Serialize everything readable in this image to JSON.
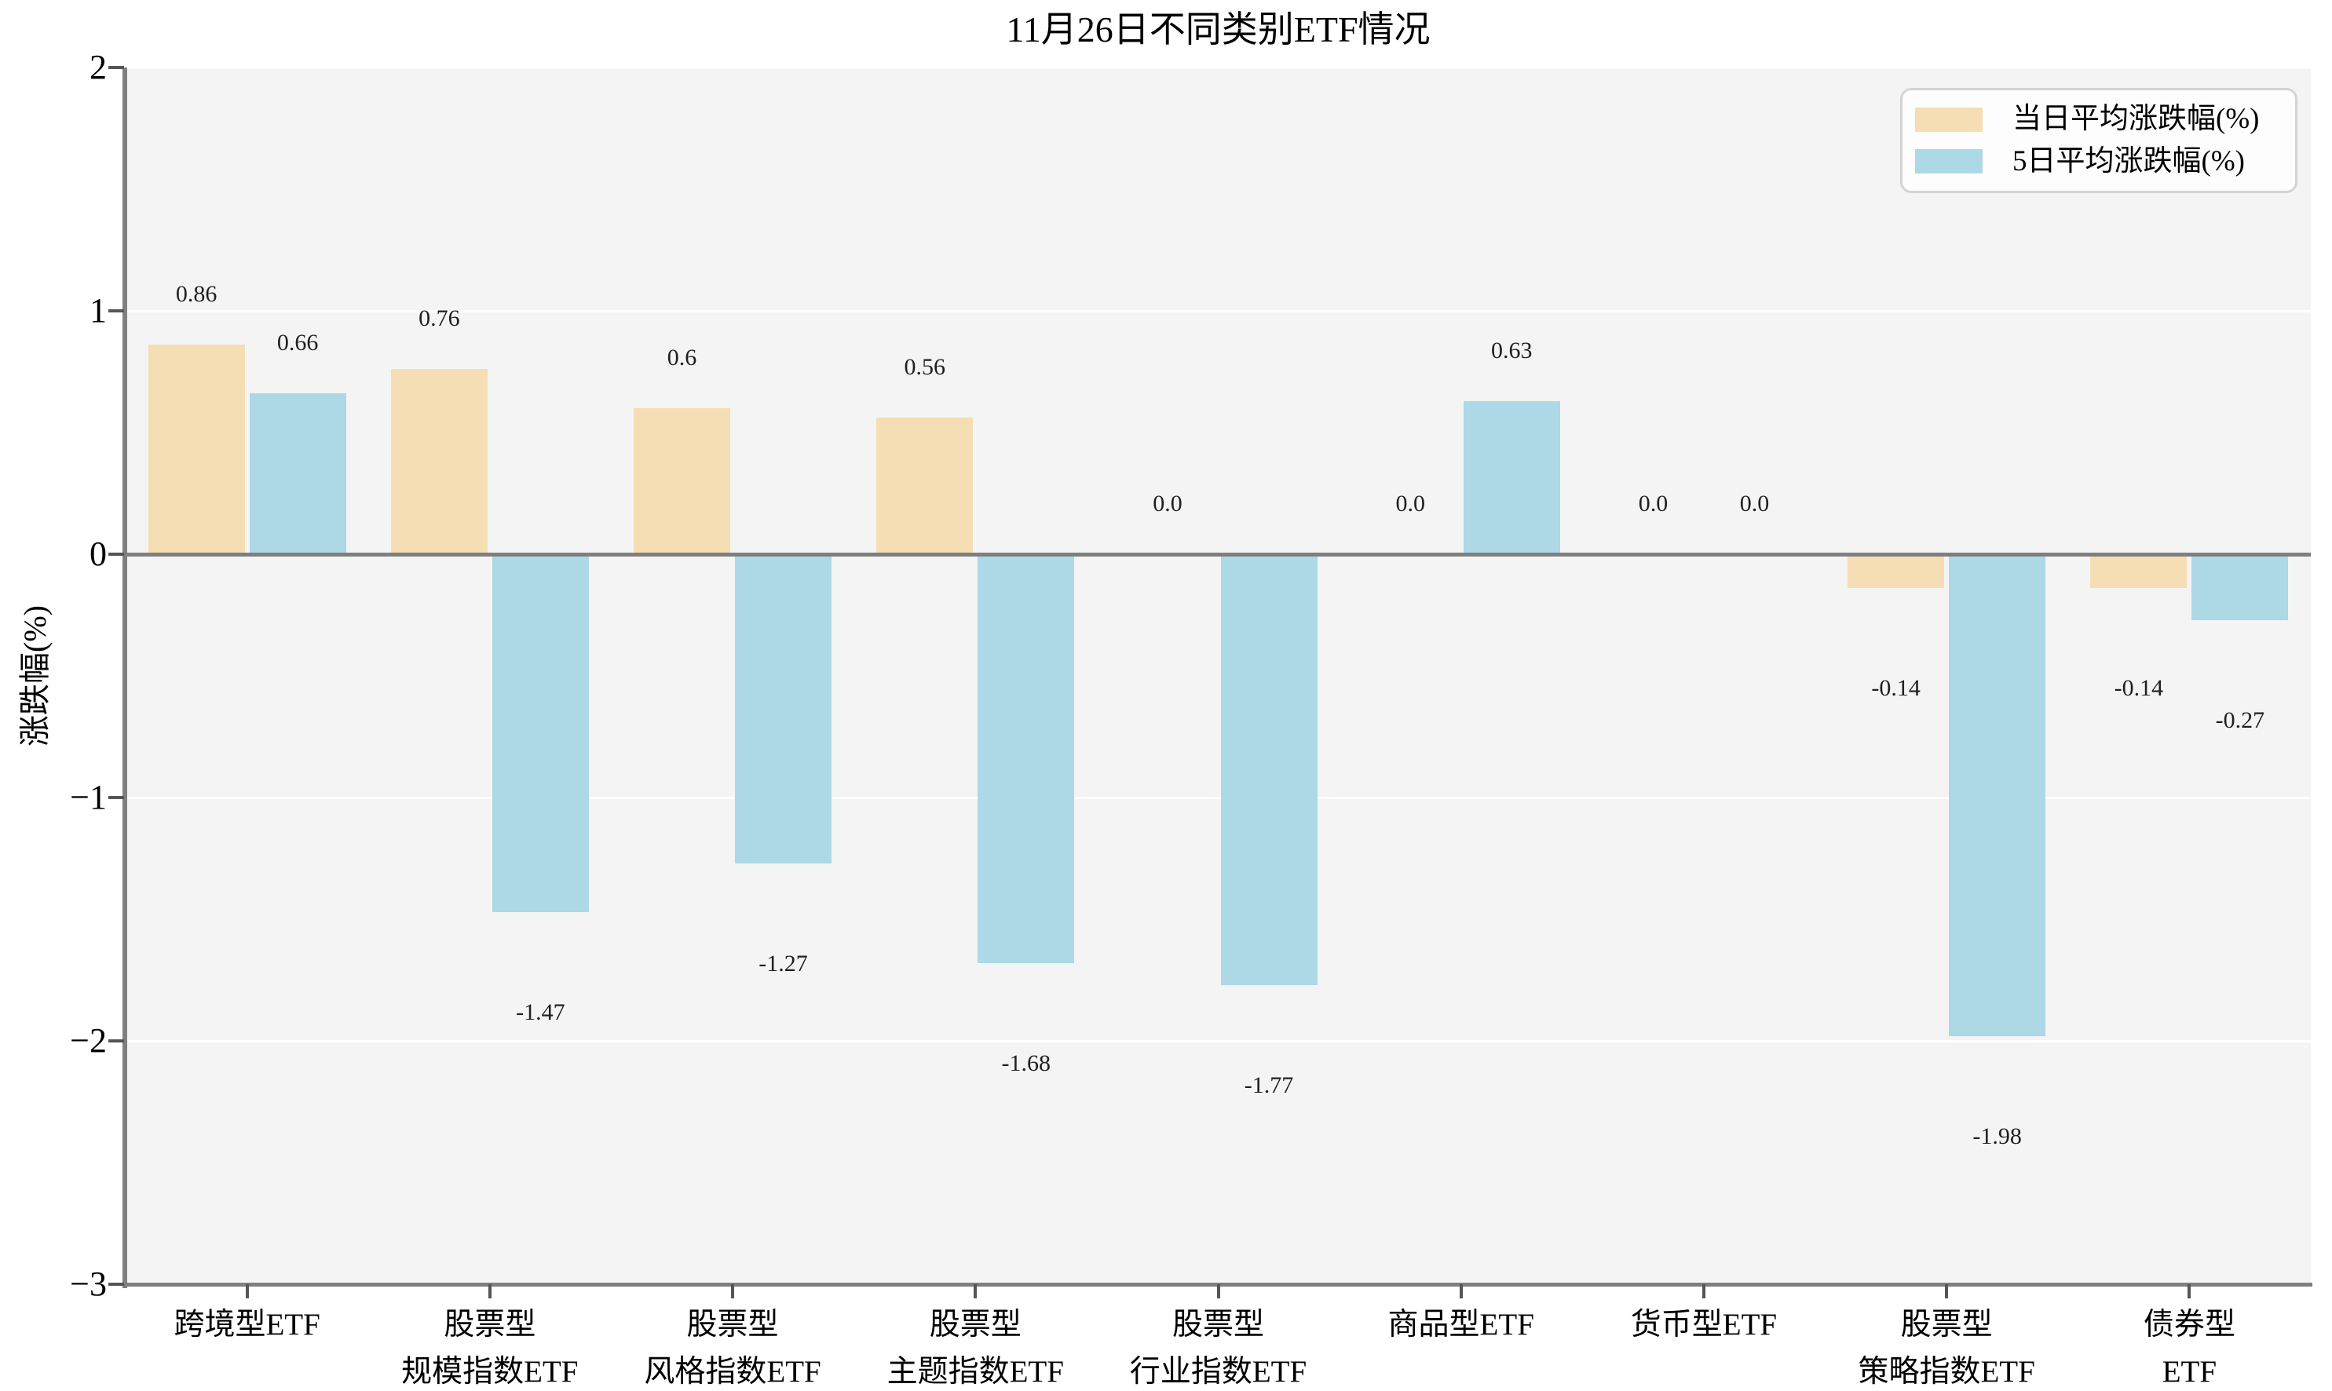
{
  "chart_data": {
    "type": "bar",
    "title": "11月26日不同类别ETF情况",
    "ylabel": "涨跌幅(%)",
    "categories": [
      "跨境型ETF",
      "股票型\n规模指数ETF",
      "股票型\n风格指数ETF",
      "股票型\n主题指数ETF",
      "股票型\n行业指数ETF",
      "商品型ETF",
      "货币型ETF",
      "股票型\n策略指数ETF",
      "债券型ETF"
    ],
    "series": [
      {
        "name": "当日平均涨跌幅(%)",
        "color": "#f5deb3",
        "values": [
          0.86,
          0.76,
          0.6,
          0.56,
          0.0,
          0.0,
          0.0,
          -0.14,
          -0.14
        ],
        "labels": [
          "0.86",
          "0.76",
          "0.6",
          "0.56",
          "0.0",
          "0.0",
          "0.0",
          "-0.14",
          "-0.14"
        ]
      },
      {
        "name": "5日平均涨跌幅(%)",
        "color": "#add8e6",
        "values": [
          0.66,
          -1.47,
          -1.27,
          -1.68,
          -1.77,
          0.63,
          0.0,
          -1.98,
          -0.27
        ],
        "labels": [
          "0.66",
          "-1.47",
          "-1.27",
          "-1.68",
          "-1.77",
          "0.63",
          "0.0",
          "-1.98",
          "-0.27"
        ]
      }
    ],
    "ylim": [
      -3,
      2
    ],
    "yticks": [
      {
        "value": 2,
        "label": "2"
      },
      {
        "value": 1,
        "label": "1"
      },
      {
        "value": 0,
        "label": "0"
      },
      {
        "value": -1,
        "label": "−1"
      },
      {
        "value": -2,
        "label": "−2"
      },
      {
        "value": -3,
        "label": "−3"
      }
    ],
    "gridline_values": [
      2,
      1,
      -1,
      -2
    ],
    "grid": true,
    "legend_position": "upper right",
    "plot_background": "#f4f4f5",
    "axis_color": "#7f7f7f"
  }
}
